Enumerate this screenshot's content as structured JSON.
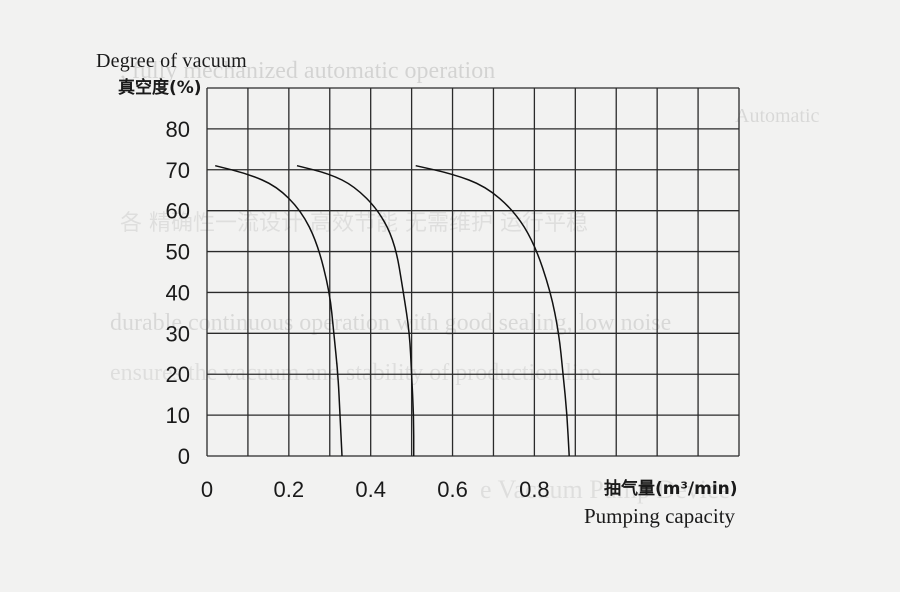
{
  "chart_data": {
    "type": "line",
    "ylabel_en": "Degree of vacuum",
    "ylabel_cn": "真空度(%)",
    "xlabel_cn": "抽气量(m³/min)",
    "xlabel_en": "Pumping capacity",
    "xlim": [
      0,
      1.3
    ],
    "ylim": [
      0,
      90
    ],
    "x_ticks": [
      "0",
      "0.2",
      "0.4",
      "0.6",
      "0.8"
    ],
    "y_ticks": [
      "0",
      "10",
      "20",
      "30",
      "40",
      "50",
      "60",
      "70",
      "80"
    ],
    "grid": true,
    "series": [
      {
        "x": [
          0.02,
          0.1,
          0.17,
          0.23,
          0.27,
          0.3,
          0.31,
          0.32,
          0.325,
          0.33
        ],
        "y": [
          71,
          69,
          66,
          60,
          52,
          40,
          30,
          20,
          10,
          0
        ]
      },
      {
        "x": [
          0.22,
          0.3,
          0.36,
          0.42,
          0.46,
          0.48,
          0.495,
          0.5,
          0.505,
          0.505
        ],
        "y": [
          71,
          69,
          66,
          60,
          52,
          40,
          30,
          20,
          10,
          0
        ]
      },
      {
        "x": [
          0.51,
          0.6,
          0.68,
          0.75,
          0.8,
          0.84,
          0.86,
          0.87,
          0.88,
          0.885
        ],
        "y": [
          71,
          69,
          66,
          60,
          52,
          40,
          30,
          20,
          10,
          0
        ]
      }
    ]
  }
}
